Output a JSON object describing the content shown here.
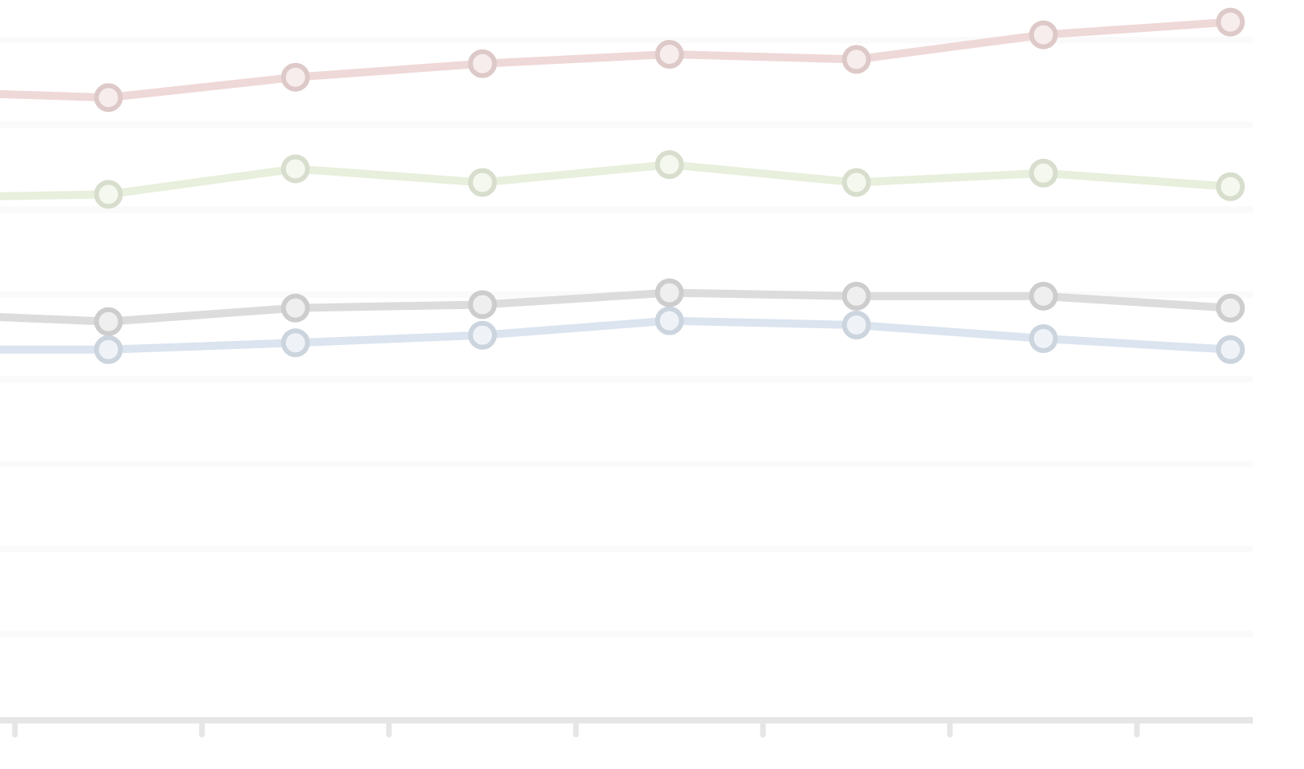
{
  "chart_data": {
    "type": "line",
    "x": [
      -0.5,
      0.5,
      1.5,
      2.5,
      3.5,
      4.5,
      5.5,
      6.5
    ],
    "series": [
      {
        "color": "#efd8d8",
        "values": [
          7.39,
          7.32,
          7.56,
          7.72,
          7.83,
          7.77,
          8.06,
          8.21
        ]
      },
      {
        "color": "#e8efdc",
        "values": [
          6.14,
          6.18,
          6.48,
          6.32,
          6.53,
          6.32,
          6.43,
          6.27
        ]
      },
      {
        "color": "#dcdcdc",
        "values": [
          4.77,
          4.68,
          4.84,
          4.88,
          5.02,
          4.98,
          4.98,
          4.84
        ]
      },
      {
        "color": "#dbe4ef",
        "values": [
          4.35,
          4.35,
          4.43,
          4.52,
          4.69,
          4.64,
          4.48,
          4.35
        ]
      }
    ],
    "xlim": [
      -0.08,
      6.62
    ],
    "xticks": [
      0,
      1,
      2,
      3,
      4,
      5,
      6
    ],
    "ylim": [
      0,
      8.47
    ],
    "yticks": [
      1,
      2,
      3,
      4,
      5,
      6,
      7,
      8
    ],
    "grid": true
  }
}
